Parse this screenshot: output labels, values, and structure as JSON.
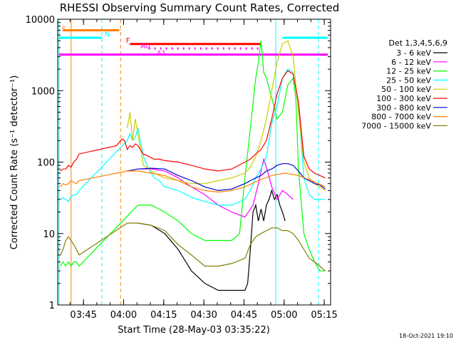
{
  "chart_data": {
    "type": "line",
    "title": "RHESSI Observing Summary Count Rates, Corrected",
    "xlabel": "Start Time (28-May-03 03:35:22)",
    "ylabel": "Corrected Count Rate (s⁻¹ detector⁻¹)",
    "yscale": "log",
    "ylim": [
      1,
      10000
    ],
    "xlim_minutes": [
      0,
      102
    ],
    "x_tick_minutes": [
      9.63,
      24.63,
      39.63,
      54.63,
      69.63,
      84.63,
      99.63
    ],
    "x_tick_labels": [
      "03:45",
      "04:00",
      "04:15",
      "04:30",
      "04:45",
      "05:00",
      "05:15"
    ],
    "y_ticks": [
      1,
      10,
      100,
      1000,
      10000
    ],
    "y_tick_labels": [
      "1",
      "10",
      "100",
      "1000",
      "10000"
    ],
    "legend_title": "Det 1,3,4,5,6,9",
    "footer": "18-Oct-2021 19:10",
    "series": [
      {
        "name": "3 - 6 keV",
        "color": "#000000",
        "x": [
          1,
          2,
          3,
          4,
          5,
          6,
          7,
          8,
          22,
          23,
          24,
          25,
          30,
          35,
          40,
          45,
          50,
          55,
          60,
          65,
          70,
          71,
          72,
          73,
          74,
          75,
          76,
          77,
          78,
          79,
          80,
          81,
          82,
          83,
          84,
          85,
          86,
          87,
          88,
          89,
          90
        ],
        "y": [
          null,
          null,
          null,
          null,
          null,
          null,
          null,
          null,
          null,
          null,
          null,
          null,
          14,
          13,
          10,
          6,
          3,
          2,
          1.6,
          1.6,
          1.6,
          2,
          6,
          20,
          25,
          15,
          22,
          15,
          25,
          30,
          40,
          30,
          35,
          25,
          20,
          15,
          null,
          null,
          null,
          null,
          null
        ]
      },
      {
        "name": "6 - 12 keV",
        "color": "#ff00ff",
        "x": [
          30,
          35,
          40,
          45,
          50,
          55,
          60,
          65,
          70,
          73,
          75,
          77,
          78,
          80,
          82,
          84,
          86,
          88,
          90,
          95,
          100
        ],
        "y": [
          80,
          80,
          75,
          60,
          45,
          35,
          25,
          20,
          17,
          25,
          50,
          110,
          85,
          45,
          30,
          40,
          35,
          30,
          null,
          null,
          null
        ]
      },
      {
        "name": "12 - 25 keV",
        "color": "#00ff00",
        "x": [
          1,
          2,
          3,
          4,
          5,
          6,
          7,
          8,
          30,
          35,
          40,
          45,
          50,
          55,
          60,
          65,
          68,
          70,
          72,
          74,
          75,
          76,
          77,
          78,
          80,
          82,
          84,
          86,
          88,
          89,
          90,
          92,
          94,
          96,
          98,
          100
        ],
        "y": [
          3.5,
          4,
          3.5,
          4,
          3.5,
          4,
          4,
          3.5,
          25,
          25,
          20,
          15,
          10,
          8,
          8,
          8,
          10,
          60,
          300,
          1500,
          2500,
          5000,
          1800,
          1500,
          800,
          400,
          500,
          1200,
          1500,
          800,
          80,
          10,
          6,
          4,
          3,
          3
        ]
      },
      {
        "name": "25 - 50 keV",
        "color": "#00ffff",
        "x": [
          1,
          2,
          3,
          4,
          5,
          6,
          7,
          8,
          26,
          27,
          28,
          29,
          30,
          32,
          34,
          36,
          38,
          40,
          45,
          50,
          55,
          60,
          65,
          70,
          72,
          74,
          76,
          78,
          80,
          82,
          84,
          86,
          88,
          90,
          92,
          94,
          96,
          98,
          100
        ],
        "y": [
          30,
          32,
          30,
          28,
          33,
          35,
          35,
          40,
          200,
          250,
          200,
          220,
          300,
          120,
          80,
          60,
          55,
          45,
          40,
          32,
          28,
          25,
          25,
          30,
          40,
          60,
          80,
          120,
          350,
          600,
          1500,
          2000,
          1800,
          600,
          60,
          35,
          30,
          30,
          30
        ]
      },
      {
        "name": "50 - 100 keV",
        "color": "#cccc00",
        "x": [
          26,
          27,
          28,
          29,
          30,
          32,
          34,
          36,
          38,
          40,
          45,
          50,
          55,
          60,
          65,
          70,
          72,
          74,
          76,
          78,
          80,
          82,
          84,
          86,
          88,
          90,
          92,
          94,
          96,
          98,
          100
        ],
        "y": [
          300,
          500,
          200,
          400,
          250,
          90,
          80,
          70,
          65,
          60,
          55,
          50,
          50,
          55,
          60,
          70,
          85,
          120,
          200,
          400,
          1000,
          2500,
          4500,
          5000,
          3000,
          500,
          100,
          60,
          50,
          45,
          40
        ]
      },
      {
        "name": "100 - 300 keV",
        "color": "#ff0000",
        "x": [
          1,
          2,
          3,
          4,
          5,
          6,
          7,
          8,
          22,
          23,
          24,
          25,
          26,
          27,
          28,
          29,
          30,
          32,
          34,
          36,
          38,
          40,
          45,
          50,
          55,
          60,
          65,
          70,
          72,
          74,
          76,
          78,
          80,
          82,
          84,
          86,
          88,
          90,
          92,
          94,
          96,
          98,
          100
        ],
        "y": [
          75,
          80,
          80,
          90,
          85,
          100,
          110,
          130,
          170,
          190,
          210,
          200,
          150,
          170,
          160,
          180,
          170,
          130,
          120,
          110,
          110,
          105,
          100,
          90,
          80,
          75,
          80,
          100,
          110,
          130,
          150,
          200,
          400,
          900,
          1500,
          1900,
          1700,
          700,
          120,
          80,
          70,
          65,
          60
        ]
      },
      {
        "name": "300 - 800 keV",
        "color": "#0000cc",
        "x": [
          26,
          30,
          35,
          40,
          45,
          50,
          55,
          60,
          65,
          70,
          72,
          74,
          76,
          78,
          80,
          82,
          84,
          86,
          88,
          90,
          92,
          94,
          96,
          98,
          100
        ],
        "y": [
          75,
          80,
          82,
          80,
          65,
          55,
          45,
          40,
          42,
          50,
          55,
          60,
          65,
          75,
          80,
          90,
          95,
          95,
          90,
          75,
          60,
          55,
          50,
          48,
          42
        ]
      },
      {
        "name": "800 - 7000 keV",
        "color": "#ff8000",
        "x": [
          1,
          2,
          3,
          4,
          5,
          6,
          7,
          8,
          26,
          30,
          35,
          40,
          45,
          50,
          55,
          60,
          65,
          70,
          75,
          80,
          85,
          90,
          95,
          100
        ],
        "y": [
          45,
          50,
          48,
          50,
          55,
          52,
          50,
          55,
          75,
          75,
          70,
          65,
          55,
          45,
          40,
          38,
          40,
          45,
          55,
          65,
          70,
          65,
          55,
          45
        ]
      },
      {
        "name": "7000 - 15000 keV",
        "color": "#808000",
        "x": [
          1,
          2,
          3,
          4,
          5,
          6,
          7,
          8,
          26,
          30,
          35,
          40,
          45,
          50,
          55,
          60,
          65,
          70,
          72,
          74,
          76,
          78,
          80,
          82,
          84,
          86,
          88,
          90,
          92,
          94,
          96,
          98,
          100
        ],
        "y": [
          5,
          6,
          8,
          9,
          8,
          7,
          6,
          5,
          14,
          14,
          13,
          11,
          7,
          5,
          3.5,
          3.5,
          3.8,
          4.5,
          7,
          9,
          10,
          11,
          12,
          12,
          11,
          11,
          10,
          8,
          6,
          4.5,
          4,
          3.5,
          3
        ]
      }
    ],
    "vlines": [
      {
        "x": 0.5,
        "color": "#00ffff",
        "style": "solid"
      },
      {
        "x": 5.0,
        "color": "#ff8000",
        "style": "solid"
      },
      {
        "x": 16.5,
        "color": "#00ffff",
        "style": "dashed"
      },
      {
        "x": 23.5,
        "color": "#ff8000",
        "style": "dashed"
      },
      {
        "x": 81.5,
        "color": "#00ffff",
        "style": "solid"
      },
      {
        "x": 97.5,
        "color": "#00ffff",
        "style": "dashed"
      }
    ],
    "hbars": [
      {
        "x0": 2,
        "x1": 23,
        "y": 7000,
        "color": "#ff8000",
        "width": 3
      },
      {
        "x0": 0.5,
        "x1": 16.5,
        "y": 5500,
        "color": "#00ffff",
        "width": 3
      },
      {
        "x0": 84,
        "x1": 101,
        "y": 5500,
        "color": "#00ffff",
        "width": 3
      },
      {
        "x0": 27,
        "x1": 76,
        "y": 4500,
        "color": "#ff0000",
        "width": 3
      },
      {
        "x0": 0.5,
        "x1": 101,
        "y": 3200,
        "color": "#ff00ff",
        "width": 3
      },
      {
        "x0": 34,
        "x1": 76,
        "y": 3900,
        "color": "#ff00ff",
        "width": 3,
        "dotted": true
      }
    ],
    "annotations": [
      {
        "text": "S",
        "x": 1.5,
        "y": 6800,
        "color": "#ff8000"
      },
      {
        "text": "N",
        "x": 17.5,
        "y": 5700,
        "color": "#00ffff"
      },
      {
        "text": "F",
        "x": 25.5,
        "y": 4700,
        "color": "#ff0000"
      },
      {
        "text": "A0",
        "x": 31,
        "y": 3900,
        "color": "#ff00ff"
      },
      {
        "text": "A1",
        "x": 37,
        "y": 3100,
        "color": "#ff00ff"
      }
    ]
  }
}
